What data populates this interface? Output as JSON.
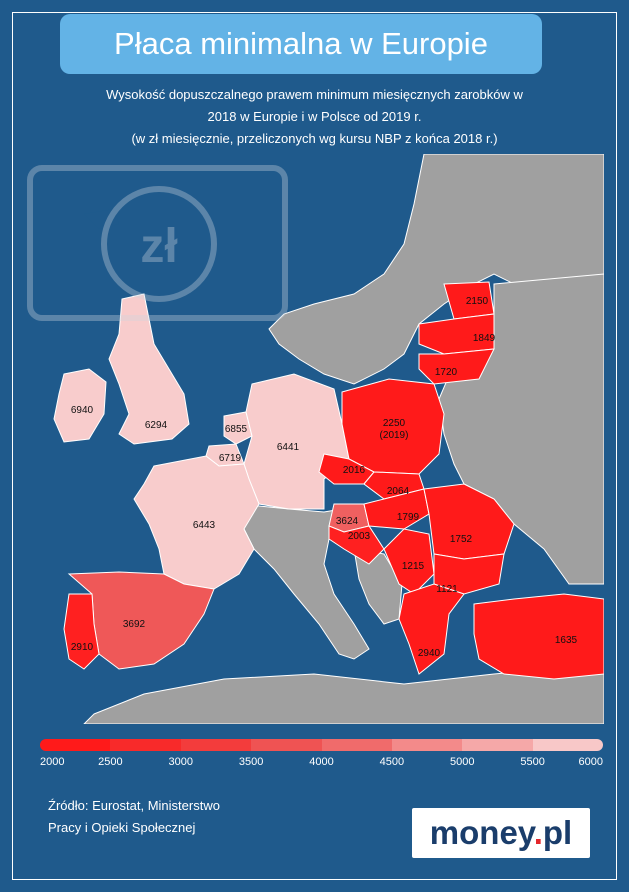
{
  "title": "Płaca minimalna w Europie",
  "subtitle_lines": [
    "Wysokość dopuszczalnego prawem minimum miesięcznych zarobków w",
    "2018 w Europie i w Polsce od 2019 r.",
    "(w zł miesięcznie, przeliczonych wg kursu NBP z końca 2018 r.)"
  ],
  "watermark_symbol": "zł",
  "colors": {
    "background": "#1f5a8c",
    "title_box": "#63b3e6",
    "no_data": "#a0a0a0"
  },
  "legend": {
    "ticks": [
      "2000",
      "2500",
      "3000",
      "3500",
      "4000",
      "4500",
      "5000",
      "5500",
      "6000"
    ],
    "colors": [
      "#ff1a1a",
      "#f82a2a",
      "#f33c3c",
      "#ef5353",
      "#f06b6b",
      "#f38a8a",
      "#f5a8a8",
      "#f8c8c8"
    ]
  },
  "map_values": {
    "ireland": "6940",
    "uk": "6294",
    "netherlands": "6855",
    "belgium": "6719",
    "germany": "6441",
    "france": "6443",
    "spain": "3692",
    "portugal": "2910",
    "poland_value": "2250",
    "poland_note": "(2019)",
    "czechia": "2016",
    "slovakia": "2064",
    "hungary": "1799",
    "slovenia": "3624",
    "croatia": "2003",
    "serbia": "1215",
    "romania": "1752",
    "bulgaria": "1121",
    "greece": "2940",
    "turkey": "1635",
    "estonia": "2150",
    "latvia": "1849",
    "lithuania": "1720"
  },
  "source_lines": [
    "Źródło: Eurostat, Ministerstwo",
    "Pracy i Opieki Społecznej"
  ],
  "logo": {
    "text": "money",
    "dot": ".",
    "suffix": "pl"
  }
}
